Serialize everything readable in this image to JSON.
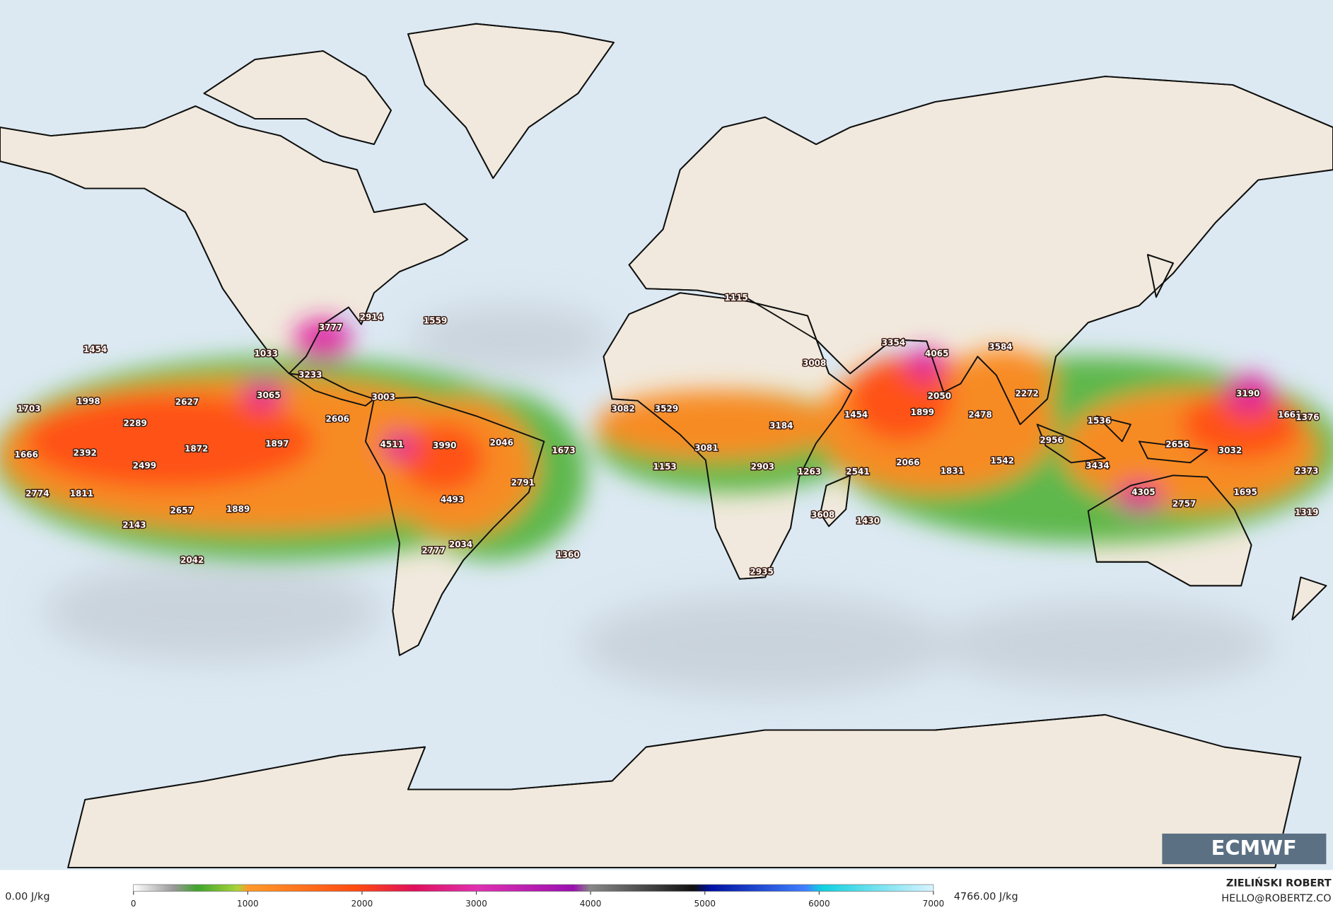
{
  "map": {
    "cape_labels": [
      1454,
      3777,
      2914,
      1559,
      1033,
      3233,
      3003,
      1115,
      3008,
      3354,
      4065,
      3584,
      1703,
      1998,
      2627,
      3065,
      2289,
      2606,
      3082,
      3529,
      3184,
      1454,
      1899,
      2050,
      2478,
      2272,
      3190,
      1661,
      1376,
      1536,
      1666,
      2392,
      1872,
      1897,
      4511,
      3990,
      2046,
      1673,
      3081,
      2956,
      2656,
      3032,
      2499,
      1153,
      2903,
      1263,
      2541,
      2066,
      1831,
      1542,
      3434,
      2373,
      2791,
      2774,
      1811,
      4493,
      4305,
      1695,
      2657,
      1889,
      3608,
      1430,
      2757,
      1319,
      2143,
      2034,
      2777,
      1360,
      2042,
      2935
    ]
  },
  "colorbar": {
    "min_label": "0.00 J/kg",
    "max_label": "4766.00 J/kg",
    "range": [
      0,
      7000
    ],
    "ticks": [
      0,
      1000,
      2000,
      3000,
      4000,
      5000,
      6000,
      7000
    ]
  },
  "logo": "ECMWF",
  "credit": {
    "name": "ZIELIŃSKI ROBERT",
    "contact": "HELLO@ROBERTZ.CO"
  }
}
